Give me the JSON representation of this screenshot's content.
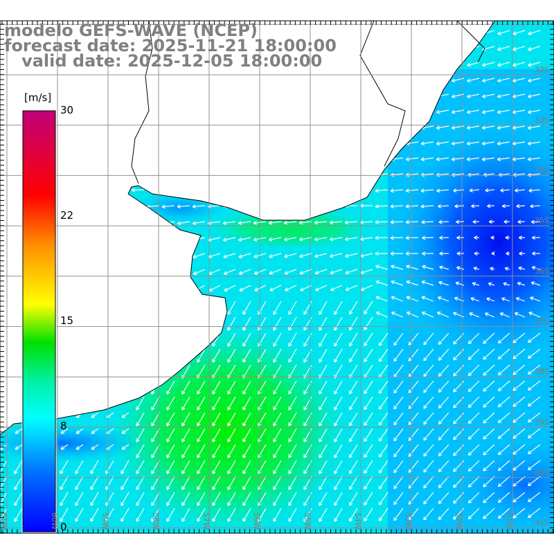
{
  "title": {
    "model": "modelo GEFS-WAVE (NCEP)",
    "forecast": "forecast date: 2025-11-21 18:00:00",
    "valid": "   valid date: 2025-12-05 18:00:00"
  },
  "colorbar": {
    "unit": "[m/s]",
    "ticks": [
      "30",
      "22",
      "15",
      "8",
      "0"
    ],
    "tick_values": [
      30,
      22,
      15,
      8,
      0
    ],
    "range": [
      0,
      30
    ],
    "colors": [
      "#0000ff",
      "#0090ff",
      "#00ffff",
      "#00e060",
      "#00e000",
      "#ffff00",
      "#ff9000",
      "#ff0000",
      "#c0007a"
    ]
  },
  "map": {
    "latitude_labels": [
      "32S",
      "33S",
      "34S",
      "35S",
      "36S",
      "37S",
      "38S",
      "39S",
      "40S",
      "41S"
    ],
    "longitude_labels": [
      "61W",
      "60W",
      "59W",
      "58W",
      "57W",
      "56W",
      "55W",
      "54W",
      "53W",
      "52W",
      "51W"
    ],
    "land_color": "#ffffff",
    "grid_color": "#909090",
    "arrow_color": "#ffffff"
  }
}
